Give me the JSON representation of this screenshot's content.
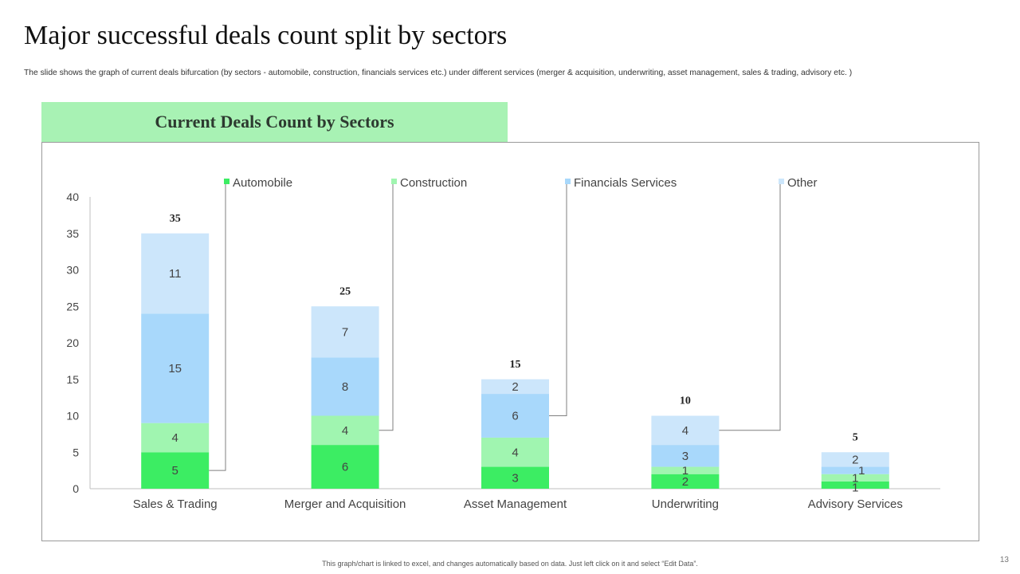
{
  "slide": {
    "title": "Major successful deals count split by sectors",
    "subtitle": "The slide shows the graph of current deals bifurcation (by sectors - automobile, construction, financials services etc.) under different services (merger & acquisition, underwriting, asset management, sales & trading, advisory etc. )",
    "footer_note": "This graph/chart is linked to excel, and changes automatically based on data. Just left click on it and select “Edit Data”.",
    "page_number": "13"
  },
  "colors": {
    "header_bg": "#a8f2b4",
    "automobile": "#3ced63",
    "construction": "#a0f5b0",
    "financials": "#a8d8fb",
    "other": "#cce6fb"
  },
  "chart_data": {
    "type": "bar",
    "stacked": true,
    "title": "Current Deals Count by Sectors",
    "categories": [
      "Sales & Trading",
      "Merger and Acquisition",
      "Asset Management",
      "Underwriting",
      "Advisory Services"
    ],
    "series": [
      {
        "name": "Automobile",
        "color": "#3ced63",
        "values": [
          5,
          6,
          3,
          2,
          1
        ]
      },
      {
        "name": "Construction",
        "color": "#a0f5b0",
        "values": [
          4,
          4,
          4,
          1,
          1
        ]
      },
      {
        "name": "Financials Services",
        "color": "#a8d8fb",
        "values": [
          15,
          8,
          6,
          3,
          1
        ]
      },
      {
        "name": "Other",
        "color": "#cce6fb",
        "values": [
          11,
          7,
          2,
          4,
          2
        ]
      }
    ],
    "totals": [
      35,
      25,
      15,
      10,
      5
    ],
    "ylim": [
      0,
      40
    ],
    "yticks": [
      0,
      5,
      10,
      15,
      20,
      25,
      30,
      35,
      40
    ],
    "xlabel": "",
    "ylabel": "",
    "legend_position": "top",
    "grid": false
  }
}
